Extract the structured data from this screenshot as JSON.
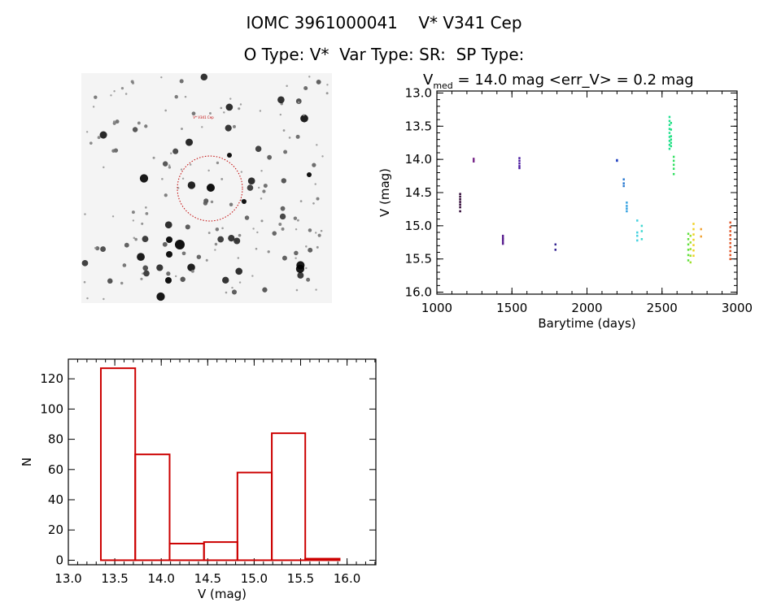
{
  "header": {
    "title": "IOMC 3961000041    V* V341 Cep",
    "subtitle": "O Type: V*  Var Type: SR:  SP Type:"
  },
  "sky_image": {
    "target_label": "V* V341 Cep",
    "circle_color": "#c00000"
  },
  "chart_data": [
    {
      "type": "scatter",
      "title_prefix": "V",
      "title_sub": "med",
      "title_rest": " = 14.0 mag <err_V> = 0.2 mag",
      "xlabel": "Barytime (days)",
      "ylabel": "V (mag)",
      "xlim": [
        1000,
        3000
      ],
      "ylim": [
        16.03,
        12.97
      ],
      "y_reversed": true,
      "xticks": [
        "1000",
        "1500",
        "2000",
        "2500",
        "3000"
      ],
      "yticks": [
        "13.0",
        "13.5",
        "14.0",
        "14.5",
        "15.0",
        "15.5",
        "16.0"
      ],
      "groups": [
        {
          "x": 1155,
          "color": "#2a0030",
          "y": [
            14.52,
            14.56,
            14.6,
            14.64,
            14.68,
            14.72,
            14.78
          ]
        },
        {
          "x": 1245,
          "color": "#7a2a8a",
          "y": [
            13.99,
            14.01,
            14.03
          ]
        },
        {
          "x": 1440,
          "color": "#5a2090",
          "y": [
            15.15,
            15.18,
            15.2,
            15.22,
            15.25,
            15.27
          ]
        },
        {
          "x": 1550,
          "color": "#4a1aa0",
          "y": [
            13.98,
            14.02,
            14.06,
            14.1,
            14.13
          ]
        },
        {
          "x": 1790,
          "color": "#302090",
          "y": [
            15.28,
            15.36
          ]
        },
        {
          "x": 2200,
          "color": "#2040c0",
          "y": [
            14.01,
            14.02
          ]
        },
        {
          "x": 2245,
          "color": "#2878d0",
          "y": [
            14.3,
            14.36,
            14.4
          ]
        },
        {
          "x": 2265,
          "color": "#30a0e0",
          "y": [
            14.65,
            14.7,
            14.74,
            14.78
          ]
        },
        {
          "x": 2335,
          "color": "#40d0e0",
          "y": [
            14.92,
            15.1,
            15.15,
            15.22
          ]
        },
        {
          "x": 2365,
          "color": "#40d8d0",
          "y": [
            15.0,
            15.08,
            15.2
          ]
        },
        {
          "x": 2550,
          "color": "#20e090",
          "y": [
            13.36,
            13.42,
            13.48,
            13.54,
            13.6,
            13.66,
            13.72,
            13.78,
            13.84
          ]
        },
        {
          "x": 2560,
          "color": "#20e080",
          "y": [
            13.45,
            13.55,
            13.65,
            13.7,
            13.75,
            13.8
          ]
        },
        {
          "x": 2578,
          "color": "#30e060",
          "y": [
            13.96,
            14.02,
            14.08,
            14.14,
            14.22
          ]
        },
        {
          "x": 2675,
          "color": "#60e040",
          "y": [
            15.12,
            15.2,
            15.28,
            15.36,
            15.44,
            15.52
          ]
        },
        {
          "x": 2690,
          "color": "#a0e030",
          "y": [
            15.15,
            15.25,
            15.35,
            15.45,
            15.55
          ]
        },
        {
          "x": 2710,
          "color": "#f0d020",
          "y": [
            14.97,
            15.05,
            15.13,
            15.21,
            15.29,
            15.37,
            15.45
          ]
        },
        {
          "x": 2760,
          "color": "#f0a030",
          "y": [
            15.05,
            15.16
          ]
        },
        {
          "x": 2955,
          "color": "#e05020",
          "y": [
            14.95,
            15.02,
            15.08,
            15.14,
            15.2,
            15.26,
            15.32,
            15.38,
            15.44,
            15.5
          ]
        }
      ]
    },
    {
      "type": "bar",
      "subtype": "histogram",
      "xlabel": "V (mag)",
      "ylabel": "N",
      "xlim": [
        13.0,
        16.31
      ],
      "ylim": [
        -3,
        133
      ],
      "xticks": [
        "13.0",
        "13.5",
        "14.0",
        "14.5",
        "15.0",
        "15.5",
        "16.0"
      ],
      "yticks": [
        "0",
        "20",
        "40",
        "60",
        "80",
        "100",
        "120"
      ],
      "bin_edges": [
        13.35,
        13.72,
        14.09,
        14.46,
        14.82,
        15.19,
        15.55,
        15.92
      ],
      "values": [
        127,
        70,
        11,
        12,
        58,
        84,
        1
      ],
      "color": "#cc0000"
    }
  ]
}
